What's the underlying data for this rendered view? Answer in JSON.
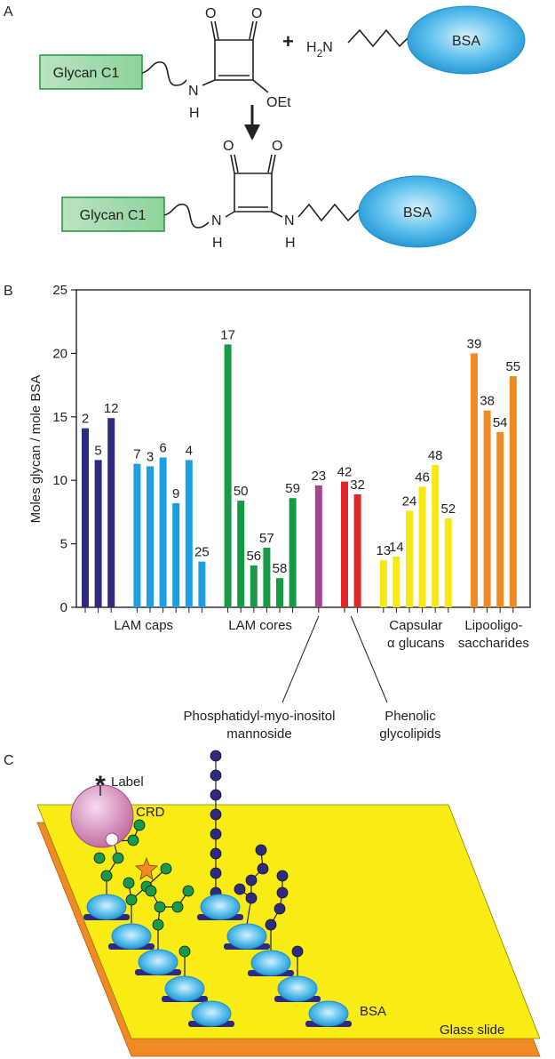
{
  "panel_labels": [
    "A",
    "B",
    "C"
  ],
  "reaction": {
    "reactant": {
      "glycan": "Glycan C1",
      "n": "N",
      "h": "H",
      "oxygens": [
        "O",
        "O"
      ],
      "ethoxy": "OEt"
    },
    "plus": "+",
    "amine": {
      "h": "H",
      "sub": "2",
      "n": "N"
    },
    "protein": "BSA",
    "product": {
      "glycan": "Glycan C1",
      "n1": "N",
      "h1": "H",
      "n2": "N",
      "h2": "H",
      "oxygens": [
        "O",
        "O"
      ],
      "protein": "BSA"
    }
  },
  "chart_data": {
    "type": "bar",
    "y_label": "Moles glycan / mole BSA",
    "ylim": [
      0,
      25
    ],
    "yticks": [
      0,
      5,
      10,
      15,
      20,
      25
    ],
    "groups": [
      {
        "label": [
          "LAM caps"
        ],
        "categories": [
          "2",
          "5",
          "12",
          "7",
          "3",
          "6",
          "9",
          "4",
          "25"
        ],
        "values": [
          14.1,
          11.6,
          14.9,
          11.3,
          11.1,
          11.8,
          8.2,
          11.6,
          3.6
        ],
        "colors": [
          "#2e2a80",
          "#2e2a80",
          "#2e2a80",
          "#1ea0e0",
          "#1ea0e0",
          "#1ea0e0",
          "#1ea0e0",
          "#1ea0e0",
          "#1ea0e0"
        ]
      },
      {
        "label": [
          "LAM cores"
        ],
        "categories": [
          "17",
          "50",
          "56",
          "57",
          "58",
          "59"
        ],
        "values": [
          20.7,
          8.4,
          3.3,
          4.7,
          2.3,
          8.6
        ],
        "colors": [
          "#179a48",
          "#179a48",
          "#179a48",
          "#179a48",
          "#179a48",
          "#179a48"
        ]
      },
      {
        "label": [
          "Phosphatidyl-myo-inositol",
          "mannoside"
        ],
        "categories": [
          "23"
        ],
        "values": [
          9.6
        ],
        "colors": [
          "#a2468e"
        ]
      },
      {
        "label": [
          "Phenolic",
          "glycolipids"
        ],
        "categories": [
          "42",
          "32"
        ],
        "values": [
          9.9,
          8.9
        ],
        "colors": [
          "#e0262a",
          "#e0262a"
        ]
      },
      {
        "label": [
          "Capsular",
          "α glucans"
        ],
        "categories": [
          "13",
          "14",
          "24",
          "46",
          "48",
          "52"
        ],
        "values": [
          3.7,
          4.0,
          7.6,
          9.5,
          11.2,
          7.0
        ],
        "colors": [
          "#f5e814",
          "#f5e814",
          "#f5e814",
          "#f5e814",
          "#f5e814",
          "#f5e814"
        ]
      },
      {
        "label": [
          "Lipooligo-",
          "saccharides"
        ],
        "categories": [
          "39",
          "38",
          "54",
          "55"
        ],
        "values": [
          20.0,
          15.5,
          13.8,
          18.2
        ],
        "colors": [
          "#f08a24",
          "#f08a24",
          "#f08a24",
          "#f08a24"
        ]
      }
    ]
  },
  "array_schematic": {
    "asterisk": "*",
    "label": "Label",
    "crd": "CRD",
    "bsa": "BSA",
    "slide": "Glass slide"
  }
}
